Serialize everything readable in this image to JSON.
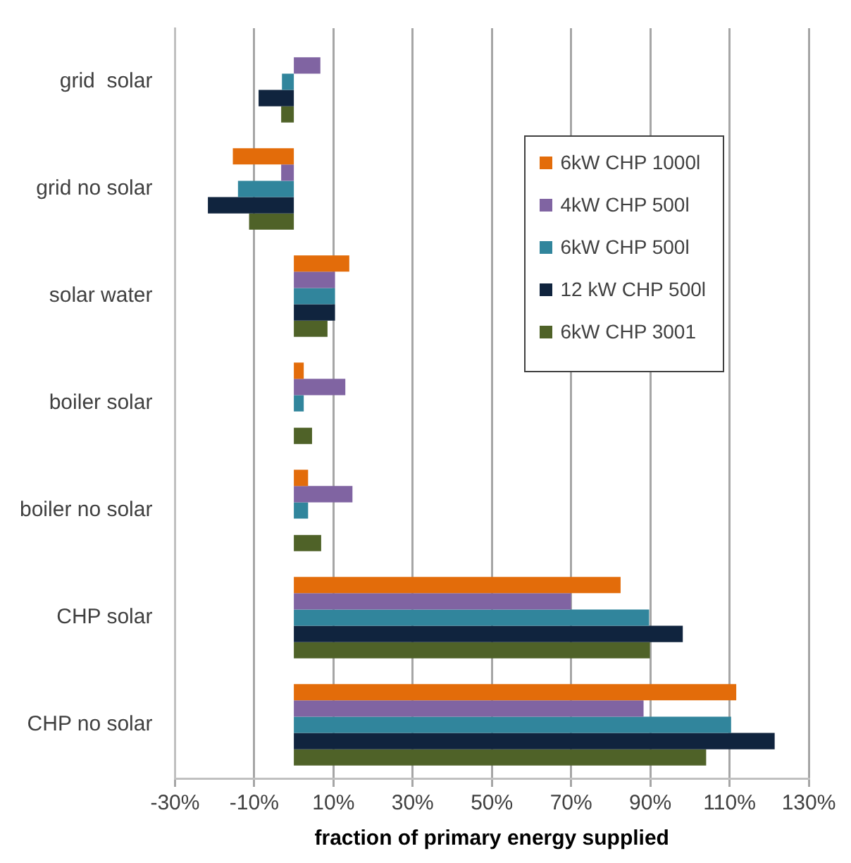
{
  "chart_data": {
    "type": "bar",
    "orientation": "horizontal",
    "xlabel": "fraction of primary energy supplied",
    "categories": [
      "grid  solar",
      "grid no solar",
      "solar water",
      "boiler solar",
      "boiler no solar",
      "CHP solar",
      "CHP no solar"
    ],
    "series": [
      {
        "name": "6kW CHP 1000l",
        "color": "#e36c0a",
        "values": [
          null,
          -15.4,
          14.0,
          2.5,
          3.6,
          82.5,
          111.7
        ]
      },
      {
        "name": "4kW CHP 500l",
        "color": "#8064a2",
        "values": [
          6.7,
          -3.2,
          10.4,
          13.0,
          14.8,
          70.0,
          88.3
        ]
      },
      {
        "name": "6kW CHP 500l",
        "color": "#31859c",
        "values": [
          -3.0,
          -14.1,
          10.4,
          2.5,
          3.6,
          89.7,
          110.4
        ]
      },
      {
        "name": "12 kW CHP 500l",
        "color": "#10243e",
        "values": [
          -8.9,
          -21.7,
          10.4,
          null,
          null,
          98.2,
          121.4
        ]
      },
      {
        "name": "6kW CHP 3001",
        "color": "#4f6228",
        "values": [
          -3.2,
          -11.3,
          8.5,
          4.6,
          6.9,
          89.9,
          104.1
        ]
      }
    ],
    "xlim": [
      -30,
      130
    ],
    "xticks": [
      {
        "value": -30,
        "label": "-30%"
      },
      {
        "value": -10,
        "label": "-10%"
      },
      {
        "value": 10,
        "label": "10%"
      },
      {
        "value": 30,
        "label": "30%"
      },
      {
        "value": 50,
        "label": "50%"
      },
      {
        "value": 70,
        "label": "70%"
      },
      {
        "value": 90,
        "label": "90%"
      },
      {
        "value": 110,
        "label": "110%"
      },
      {
        "value": 130,
        "label": "130%"
      }
    ],
    "grid": "x",
    "legend": "top right"
  }
}
